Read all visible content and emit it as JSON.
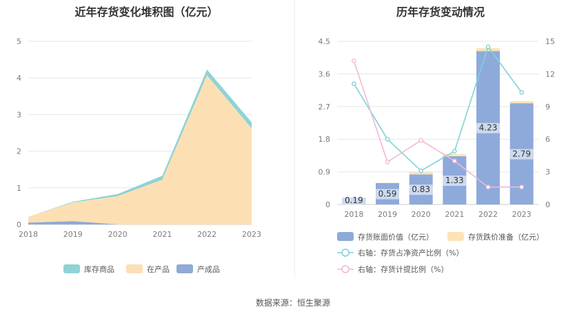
{
  "source_label": "数据来源：恒生聚源",
  "chart_data": [
    {
      "type": "area",
      "title": "近年存货变化堆积图（亿元）",
      "stacked": true,
      "categories": [
        "2018",
        "2019",
        "2020",
        "2021",
        "2022",
        "2023"
      ],
      "ylim": [
        0,
        5
      ],
      "yticks": [
        "0",
        "1",
        "2",
        "3",
        "4",
        "5"
      ],
      "grid": true,
      "legend_position": "bottom",
      "series": [
        {
          "name": "产成品",
          "color": "#8fa9d8",
          "values": [
            0.05,
            0.09,
            0.0,
            0.0,
            0.0,
            0.0
          ]
        },
        {
          "name": "在产品",
          "color": "#fce0b4",
          "values": [
            0.16,
            0.51,
            0.77,
            1.22,
            4.07,
            2.62
          ]
        },
        {
          "name": "库存商品",
          "color": "#8fd3d6",
          "values": [
            0.0,
            0.02,
            0.06,
            0.11,
            0.16,
            0.17
          ]
        }
      ],
      "legend_order": [
        "库存商品",
        "在产品",
        "产成品"
      ]
    },
    {
      "type": "bar",
      "title": "历年存货变动情况",
      "stacked": true,
      "categories": [
        "2018",
        "2019",
        "2020",
        "2021",
        "2022",
        "2023"
      ],
      "ylim": [
        0,
        4.5
      ],
      "yticks": [
        "0",
        "0.9",
        "1.8",
        "2.7",
        "3.6",
        "4.5"
      ],
      "y2lim": [
        0,
        15
      ],
      "y2ticks": [
        "0",
        "3",
        "6",
        "9",
        "12",
        "15"
      ],
      "grid": true,
      "legend_position": "bottom",
      "series": [
        {
          "name": "存货账面价值（亿元）",
          "kind": "bar",
          "color": "#8eaadb",
          "values": [
            0.19,
            0.59,
            0.83,
            1.33,
            4.23,
            2.79
          ],
          "labels": [
            "0.19",
            "0.59",
            "0.83",
            "1.33",
            "4.23",
            "2.79"
          ]
        },
        {
          "name": "存货跌价准备（亿元）",
          "kind": "bar",
          "color": "#fde3b5",
          "values": [
            0.0,
            0.01,
            0.06,
            0.06,
            0.08,
            0.06
          ]
        },
        {
          "name": "右轴：存货占净资产比例（%）",
          "kind": "line",
          "axis": "right",
          "color": "#7fd2d8",
          "values": [
            11.1,
            6.0,
            3.1,
            4.9,
            14.5,
            10.3
          ]
        },
        {
          "name": "右轴：存货计提比例（%）",
          "kind": "line",
          "axis": "right",
          "color": "#f0b8d6",
          "values": [
            13.2,
            3.9,
            5.9,
            4.0,
            1.6,
            1.6
          ]
        }
      ]
    }
  ]
}
